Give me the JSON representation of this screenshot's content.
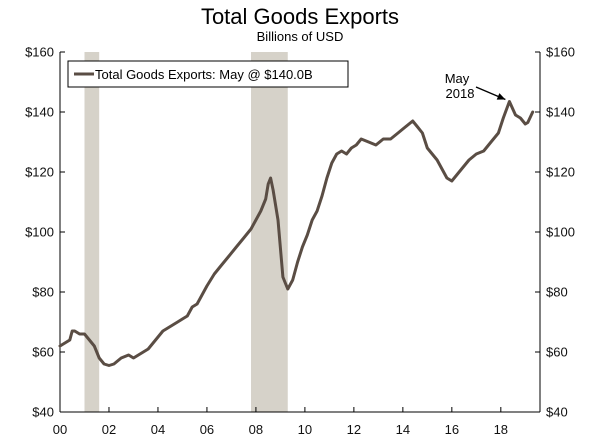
{
  "chart_data": {
    "type": "line",
    "title": "Total Goods Exports",
    "subtitle": "Billions of USD",
    "xlabel": "",
    "ylabel": "",
    "xlim": [
      2000,
      2019.6
    ],
    "ylim": [
      40,
      160
    ],
    "y_ticks": [
      40,
      60,
      80,
      100,
      120,
      140,
      160
    ],
    "y_tick_labels_left": [
      "$40",
      "$60",
      "$80",
      "$100",
      "$120",
      "$140",
      "$160"
    ],
    "y_tick_labels_right": [
      "$40",
      "$60",
      "$80",
      "$100",
      "$120",
      "$140",
      "$160"
    ],
    "x_ticks": [
      2000,
      2002,
      2004,
      2006,
      2008,
      2010,
      2012,
      2014,
      2016,
      2018
    ],
    "x_tick_labels": [
      "00",
      "02",
      "04",
      "06",
      "08",
      "10",
      "12",
      "14",
      "16",
      "18"
    ],
    "recessions": [
      {
        "start": 2001.0,
        "end": 2001.6
      },
      {
        "start": 2007.8,
        "end": 2009.3
      }
    ],
    "legend": {
      "label": "Total Goods Exports: May @ $140.0B",
      "position": "top-left"
    },
    "annotation": {
      "line1": "May",
      "line2": "2018",
      "x": 2018.35,
      "y": 143.5
    },
    "colors": {
      "line": "#5a4d44",
      "recession": "#d6d2c9",
      "axis": "#000000"
    },
    "series": [
      {
        "name": "Total Goods Exports",
        "x": [
          2000.0,
          2000.2,
          2000.4,
          2000.5,
          2000.6,
          2000.8,
          2001.0,
          2001.2,
          2001.4,
          2001.6,
          2001.8,
          2002.0,
          2002.2,
          2002.5,
          2002.8,
          2003.0,
          2003.2,
          2003.4,
          2003.6,
          2003.8,
          2004.0,
          2004.2,
          2004.4,
          2004.6,
          2004.8,
          2005.0,
          2005.2,
          2005.4,
          2005.6,
          2005.8,
          2006.0,
          2006.3,
          2006.6,
          2006.9,
          2007.2,
          2007.5,
          2007.8,
          2008.0,
          2008.2,
          2008.4,
          2008.5,
          2008.6,
          2008.7,
          2008.9,
          2009.1,
          2009.2,
          2009.3,
          2009.5,
          2009.7,
          2009.9,
          2010.1,
          2010.3,
          2010.5,
          2010.7,
          2010.9,
          2011.1,
          2011.3,
          2011.5,
          2011.7,
          2011.9,
          2012.1,
          2012.3,
          2012.6,
          2012.9,
          2013.2,
          2013.5,
          2013.8,
          2014.1,
          2014.4,
          2014.6,
          2014.8,
          2015.0,
          2015.2,
          2015.4,
          2015.6,
          2015.8,
          2016.0,
          2016.2,
          2016.4,
          2016.7,
          2017.0,
          2017.3,
          2017.6,
          2017.9,
          2018.1,
          2018.35,
          2018.6,
          2018.8,
          2019.0,
          2019.1,
          2019.3
        ],
        "y": [
          62,
          63,
          64,
          67,
          67,
          66,
          66,
          64,
          62,
          58,
          56,
          55.5,
          56,
          58,
          59,
          58,
          59,
          60,
          61,
          63,
          65,
          67,
          68,
          69,
          70,
          71,
          72,
          75,
          76,
          79,
          82,
          86,
          89,
          92,
          95,
          98,
          101,
          104,
          107,
          111,
          116,
          118,
          114,
          104,
          85,
          83,
          81,
          84,
          90,
          95,
          99,
          104,
          107,
          112,
          118,
          123,
          126,
          127,
          126,
          128,
          129,
          131,
          130,
          129,
          131,
          131,
          133,
          135,
          137,
          135,
          133,
          128,
          126,
          124,
          121,
          118,
          117,
          119,
          121,
          124,
          126,
          127,
          130,
          133,
          138,
          143.5,
          139,
          138,
          136,
          136.5,
          140
        ]
      }
    ]
  }
}
